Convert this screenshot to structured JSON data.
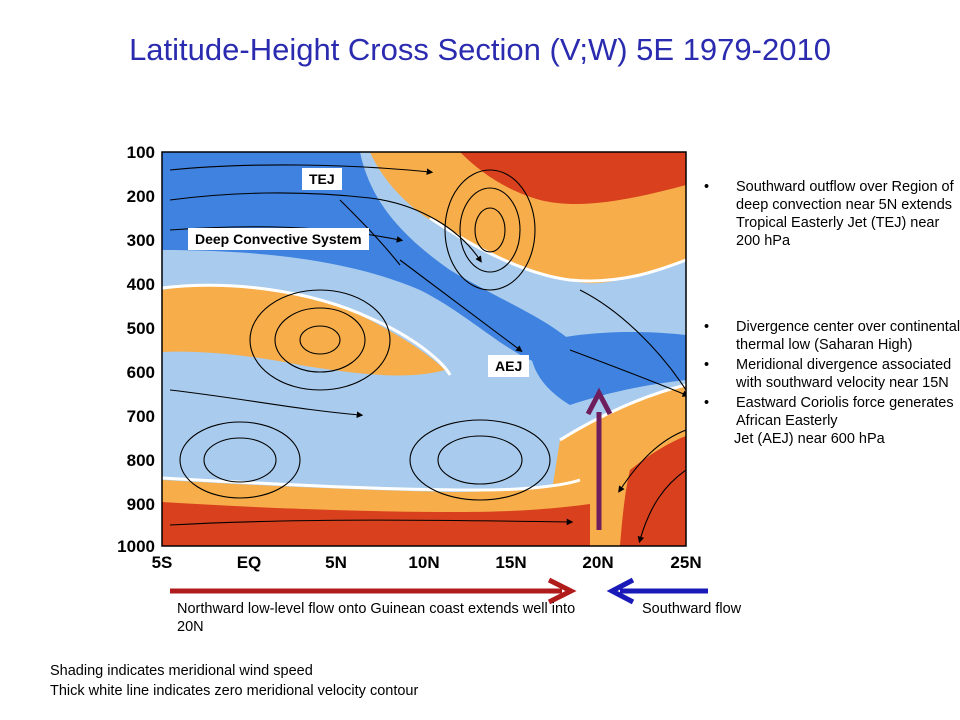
{
  "title": "Latitude-Height Cross Section (V;W) 5E 1979-2010",
  "diagram": {
    "y_axis_labels": [
      "100",
      "200",
      "300",
      "400",
      "500",
      "600",
      "700",
      "800",
      "900",
      "1000"
    ],
    "x_axis_labels": [
      "5S",
      "EQ",
      "5N",
      "10N",
      "15N",
      "20N",
      "25N"
    ],
    "annotations": {
      "tej": "TEJ",
      "deep_convective": "Deep Convective System",
      "aej": "AEJ"
    },
    "colors": {
      "title": "#2b2bb0",
      "northward_arrow": "#b01c1c",
      "southward_arrow": "#1a1ab8",
      "vertical_arrow": "#6e1e5c",
      "red_shade": "#d8401e",
      "orange_shade": "#f7ae4a",
      "blue_dark": "#3f82e0",
      "blue_mid": "#79aee8",
      "blue_light": "#a9ccee"
    }
  },
  "bullets_top": [
    "Southward outflow over Region of deep convection near 5N extends Tropical Easterly Jet (TEJ) near 200 hPa"
  ],
  "bullets_mid": [
    "Divergence center over continental thermal low (Saharan High)",
    "Meridional divergence associated with southward velocity near 15N",
    "Eastward Coriolis force generates African Easterly"
  ],
  "bullets_mid_last_line": "Jet (AEJ) near 600 hPa",
  "captions": {
    "northward": "Northward low-level flow onto Guinean coast extends well into 20N",
    "southward": "Southward flow",
    "shading": "Shading indicates meridional wind speed",
    "white_line": "Thick white line indicates zero meridional velocity contour"
  }
}
